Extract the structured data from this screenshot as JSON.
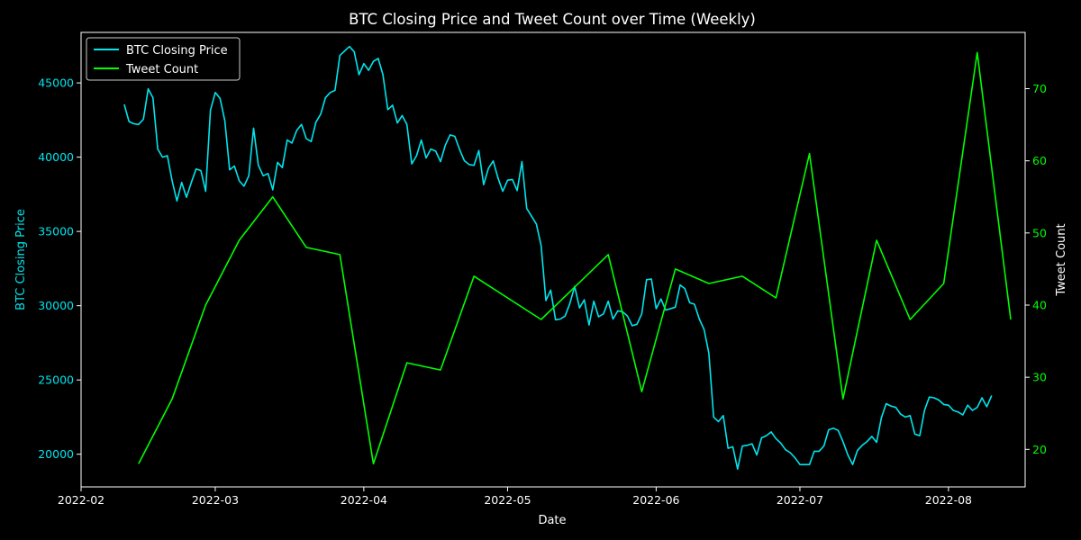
{
  "chart_data": {
    "type": "line",
    "title": "BTC Closing Price and Tweet Count over Time (Weekly)",
    "xlabel": "Date",
    "ylabel_left": "BTC Closing Price",
    "ylabel_right": "Tweet Count",
    "x_axis_kind": "date",
    "xlim": [
      "2022-02-01",
      "2022-08-17"
    ],
    "ylim_left": [
      17800,
      48400
    ],
    "ylim_right": [
      14.8,
      77.8
    ],
    "x_ticks": [
      "2022-02-01",
      "2022-03-01",
      "2022-04-01",
      "2022-05-01",
      "2022-06-01",
      "2022-07-01",
      "2022-08-01"
    ],
    "x_tick_labels": [
      "2022-02",
      "2022-03",
      "2022-04",
      "2022-05",
      "2022-06",
      "2022-07",
      "2022-08"
    ],
    "y_ticks_left": [
      20000,
      25000,
      30000,
      35000,
      40000,
      45000
    ],
    "y_tick_labels_left": [
      "20000",
      "25000",
      "30000",
      "35000",
      "40000",
      "45000"
    ],
    "y_ticks_right": [
      20,
      30,
      40,
      50,
      60,
      70
    ],
    "y_tick_labels_right": [
      "20",
      "30",
      "40",
      "50",
      "60",
      "70"
    ],
    "grid": false,
    "legend_position": "top-left",
    "colors": {
      "background": "#000000",
      "price": "#00e5ee",
      "tweets": "#00ff00",
      "axes": "#ffffff",
      "text": "#ffffff"
    },
    "series": [
      {
        "name": "BTC Closing Price",
        "axis": "left",
        "color": "#00e5ee",
        "points": [
          [
            "2022-02-10",
            43550
          ],
          [
            "2022-02-11",
            42400
          ],
          [
            "2022-02-12",
            42250
          ],
          [
            "2022-02-13",
            42200
          ],
          [
            "2022-02-14",
            42550
          ],
          [
            "2022-02-15",
            44600
          ],
          [
            "2022-02-16",
            44000
          ],
          [
            "2022-02-17",
            40550
          ],
          [
            "2022-02-18",
            40000
          ],
          [
            "2022-02-19",
            40100
          ],
          [
            "2022-02-20",
            38400
          ],
          [
            "2022-02-21",
            37050
          ],
          [
            "2022-02-22",
            38300
          ],
          [
            "2022-02-23",
            37300
          ],
          [
            "2022-02-24",
            38300
          ],
          [
            "2022-02-25",
            39200
          ],
          [
            "2022-02-26",
            39100
          ],
          [
            "2022-02-27",
            37700
          ],
          [
            "2022-02-28",
            43150
          ],
          [
            "2022-03-01",
            44350
          ],
          [
            "2022-03-02",
            43950
          ],
          [
            "2022-03-03",
            42450
          ],
          [
            "2022-03-04",
            39150
          ],
          [
            "2022-03-05",
            39400
          ],
          [
            "2022-03-06",
            38400
          ],
          [
            "2022-03-07",
            38050
          ],
          [
            "2022-03-08",
            38750
          ],
          [
            "2022-03-09",
            41950
          ],
          [
            "2022-03-10",
            39450
          ],
          [
            "2022-03-11",
            38750
          ],
          [
            "2022-03-12",
            38900
          ],
          [
            "2022-03-13",
            37800
          ],
          [
            "2022-03-14",
            39650
          ],
          [
            "2022-03-15",
            39300
          ],
          [
            "2022-03-16",
            41150
          ],
          [
            "2022-03-17",
            40950
          ],
          [
            "2022-03-18",
            41800
          ],
          [
            "2022-03-19",
            42200
          ],
          [
            "2022-03-20",
            41250
          ],
          [
            "2022-03-21",
            41050
          ],
          [
            "2022-03-22",
            42350
          ],
          [
            "2022-03-23",
            42900
          ],
          [
            "2022-03-24",
            44000
          ],
          [
            "2022-03-25",
            44350
          ],
          [
            "2022-03-26",
            44500
          ],
          [
            "2022-03-27",
            46850
          ],
          [
            "2022-03-28",
            47150
          ],
          [
            "2022-03-29",
            47450
          ],
          [
            "2022-03-30",
            47100
          ],
          [
            "2022-03-31",
            45550
          ],
          [
            "2022-04-01",
            46300
          ],
          [
            "2022-04-02",
            45850
          ],
          [
            "2022-04-03",
            46450
          ],
          [
            "2022-04-04",
            46650
          ],
          [
            "2022-04-05",
            45550
          ],
          [
            "2022-04-06",
            43200
          ],
          [
            "2022-04-07",
            43500
          ],
          [
            "2022-04-08",
            42300
          ],
          [
            "2022-04-09",
            42800
          ],
          [
            "2022-04-10",
            42200
          ],
          [
            "2022-04-11",
            39550
          ],
          [
            "2022-04-12",
            40100
          ],
          [
            "2022-04-13",
            41150
          ],
          [
            "2022-04-14",
            39950
          ],
          [
            "2022-04-15",
            40550
          ],
          [
            "2022-04-16",
            40400
          ],
          [
            "2022-04-17",
            39700
          ],
          [
            "2022-04-18",
            40800
          ],
          [
            "2022-04-19",
            41500
          ],
          [
            "2022-04-20",
            41400
          ],
          [
            "2022-04-21",
            40500
          ],
          [
            "2022-04-22",
            39750
          ],
          [
            "2022-04-23",
            39500
          ],
          [
            "2022-04-24",
            39450
          ],
          [
            "2022-04-25",
            40450
          ],
          [
            "2022-04-26",
            38150
          ],
          [
            "2022-04-27",
            39250
          ],
          [
            "2022-04-28",
            39750
          ],
          [
            "2022-04-29",
            38600
          ],
          [
            "2022-04-30",
            37700
          ],
          [
            "2022-05-01",
            38450
          ],
          [
            "2022-05-02",
            38500
          ],
          [
            "2022-05-03",
            37750
          ],
          [
            "2022-05-04",
            39700
          ],
          [
            "2022-05-05",
            36550
          ],
          [
            "2022-05-07",
            35500
          ],
          [
            "2022-05-08",
            34050
          ],
          [
            "2022-05-09",
            30350
          ],
          [
            "2022-05-10",
            31050
          ],
          [
            "2022-05-11",
            29050
          ],
          [
            "2022-05-12",
            29100
          ],
          [
            "2022-05-13",
            29300
          ],
          [
            "2022-05-14",
            30150
          ],
          [
            "2022-05-15",
            31300
          ],
          [
            "2022-05-16",
            29850
          ],
          [
            "2022-05-17",
            30400
          ],
          [
            "2022-05-18",
            28700
          ],
          [
            "2022-05-19",
            30300
          ],
          [
            "2022-05-20",
            29250
          ],
          [
            "2022-05-21",
            29450
          ],
          [
            "2022-05-22",
            30300
          ],
          [
            "2022-05-23",
            29100
          ],
          [
            "2022-05-24",
            29650
          ],
          [
            "2022-05-25",
            29600
          ],
          [
            "2022-05-26",
            29300
          ],
          [
            "2022-05-27",
            28650
          ],
          [
            "2022-05-28",
            28750
          ],
          [
            "2022-05-29",
            29450
          ],
          [
            "2022-05-30",
            31750
          ],
          [
            "2022-05-31",
            31800
          ],
          [
            "2022-06-01",
            29800
          ],
          [
            "2022-06-02",
            30450
          ],
          [
            "2022-06-03",
            29700
          ],
          [
            "2022-06-05",
            29900
          ],
          [
            "2022-06-06",
            31400
          ],
          [
            "2022-06-07",
            31150
          ],
          [
            "2022-06-08",
            30200
          ],
          [
            "2022-06-09",
            30100
          ],
          [
            "2022-06-10",
            29100
          ],
          [
            "2022-06-11",
            28400
          ],
          [
            "2022-06-12",
            26800
          ],
          [
            "2022-06-13",
            22500
          ],
          [
            "2022-06-14",
            22200
          ],
          [
            "2022-06-15",
            22600
          ],
          [
            "2022-06-16",
            20400
          ],
          [
            "2022-06-17",
            20500
          ],
          [
            "2022-06-18",
            19000
          ],
          [
            "2022-06-19",
            20550
          ],
          [
            "2022-06-20",
            20600
          ],
          [
            "2022-06-21",
            20700
          ],
          [
            "2022-06-22",
            19950
          ],
          [
            "2022-06-23",
            21100
          ],
          [
            "2022-06-24",
            21250
          ],
          [
            "2022-06-25",
            21500
          ],
          [
            "2022-06-26",
            21050
          ],
          [
            "2022-06-27",
            20750
          ],
          [
            "2022-06-28",
            20300
          ],
          [
            "2022-06-29",
            20100
          ],
          [
            "2022-06-30",
            19750
          ],
          [
            "2022-07-01",
            19300
          ],
          [
            "2022-07-02",
            19300
          ],
          [
            "2022-07-03",
            19300
          ],
          [
            "2022-07-04",
            20200
          ],
          [
            "2022-07-05",
            20200
          ],
          [
            "2022-07-06",
            20550
          ],
          [
            "2022-07-07",
            21650
          ],
          [
            "2022-07-08",
            21750
          ],
          [
            "2022-07-09",
            21600
          ],
          [
            "2022-07-10",
            20850
          ],
          [
            "2022-07-11",
            19950
          ],
          [
            "2022-07-12",
            19300
          ],
          [
            "2022-07-13",
            20250
          ],
          [
            "2022-07-14",
            20600
          ],
          [
            "2022-07-15",
            20850
          ],
          [
            "2022-07-16",
            21200
          ],
          [
            "2022-07-17",
            20800
          ],
          [
            "2022-07-18",
            22450
          ],
          [
            "2022-07-19",
            23400
          ],
          [
            "2022-07-20",
            23250
          ],
          [
            "2022-07-21",
            23150
          ],
          [
            "2022-07-22",
            22700
          ],
          [
            "2022-07-23",
            22500
          ],
          [
            "2022-07-24",
            22600
          ],
          [
            "2022-07-25",
            21350
          ],
          [
            "2022-07-26",
            21250
          ],
          [
            "2022-07-27",
            22950
          ],
          [
            "2022-07-28",
            23850
          ],
          [
            "2022-07-29",
            23800
          ],
          [
            "2022-07-30",
            23650
          ],
          [
            "2022-07-31",
            23350
          ],
          [
            "2022-08-01",
            23300
          ],
          [
            "2022-08-02",
            22950
          ],
          [
            "2022-08-03",
            22850
          ],
          [
            "2022-08-04",
            22650
          ],
          [
            "2022-08-05",
            23300
          ],
          [
            "2022-08-06",
            22950
          ],
          [
            "2022-08-07",
            23150
          ],
          [
            "2022-08-08",
            23800
          ],
          [
            "2022-08-09",
            23200
          ],
          [
            "2022-08-10",
            23950
          ]
        ]
      },
      {
        "name": "Tweet Count",
        "axis": "right",
        "color": "#00ff00",
        "points": [
          [
            "2022-02-13",
            18
          ],
          [
            "2022-02-20",
            27
          ],
          [
            "2022-02-27",
            40
          ],
          [
            "2022-03-06",
            49
          ],
          [
            "2022-03-13",
            55
          ],
          [
            "2022-03-20",
            48
          ],
          [
            "2022-03-27",
            47
          ],
          [
            "2022-04-03",
            18
          ],
          [
            "2022-04-10",
            32
          ],
          [
            "2022-04-17",
            31
          ],
          [
            "2022-04-24",
            44
          ],
          [
            "2022-05-08",
            38
          ],
          [
            "2022-05-22",
            47
          ],
          [
            "2022-05-29",
            28
          ],
          [
            "2022-06-05",
            45
          ],
          [
            "2022-06-12",
            43
          ],
          [
            "2022-06-19",
            44
          ],
          [
            "2022-06-26",
            41
          ],
          [
            "2022-07-03",
            61
          ],
          [
            "2022-07-10",
            27
          ],
          [
            "2022-07-17",
            49
          ],
          [
            "2022-07-24",
            38
          ],
          [
            "2022-07-31",
            43
          ],
          [
            "2022-08-07",
            75
          ],
          [
            "2022-08-14",
            38
          ]
        ]
      }
    ]
  }
}
